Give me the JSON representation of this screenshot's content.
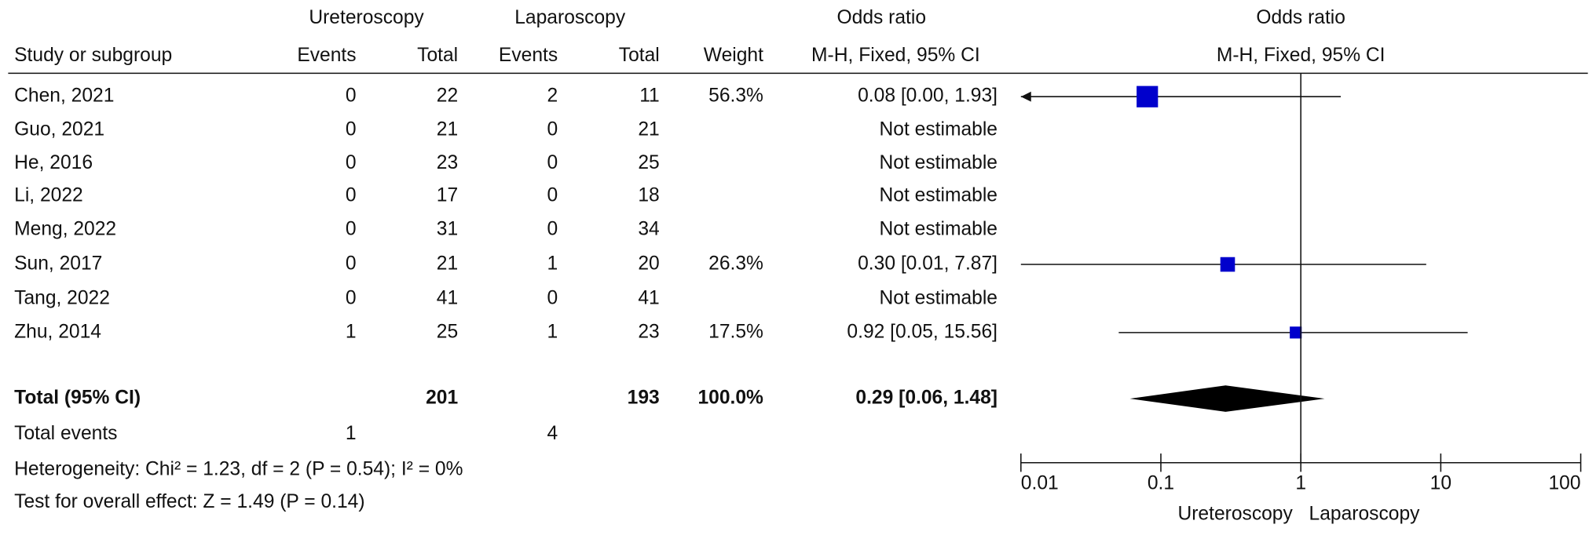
{
  "chart_data": {
    "type": "forest",
    "column_groups": [
      "Ureteroscopy",
      "Laparoscopy",
      "Odds ratio",
      "Odds ratio"
    ],
    "columns": [
      "Study or subgroup",
      "Events",
      "Total",
      "Events",
      "Total",
      "Weight",
      "M-H, Fixed, 95% CI",
      "M-H, Fixed, 95% CI"
    ],
    "studies": [
      "Chen, 2021",
      "Guo, 2021",
      "He, 2016",
      "Li, 2022",
      "Meng, 2022",
      "Sun, 2017",
      "Tang, 2022",
      "Zhu, 2014"
    ],
    "exp_events": [
      0,
      0,
      0,
      0,
      0,
      0,
      0,
      1
    ],
    "exp_total": [
      22,
      21,
      23,
      17,
      31,
      21,
      41,
      25
    ],
    "ctrl_events": [
      2,
      0,
      0,
      0,
      0,
      1,
      0,
      1
    ],
    "ctrl_total": [
      11,
      21,
      25,
      18,
      34,
      20,
      41,
      23
    ],
    "weights": {
      "values": [
        56.3,
        null,
        null,
        null,
        null,
        26.3,
        null,
        17.5
      ],
      "value_labels": [
        "56.3%",
        null,
        null,
        null,
        null,
        "26.3%",
        null,
        "17.5%"
      ]
    },
    "odds_ratio": {
      "values": [
        0.08,
        null,
        null,
        null,
        null,
        0.3,
        null,
        0.92
      ],
      "ci_low": [
        0.0,
        null,
        null,
        null,
        null,
        0.01,
        null,
        0.05
      ],
      "ci_high": [
        1.93,
        null,
        null,
        null,
        null,
        7.87,
        null,
        15.56
      ],
      "value_labels": [
        "0.08 [0.00, 1.93]",
        "Not estimable",
        "Not estimable",
        "Not estimable",
        "Not estimable",
        "0.30 [0.01, 7.87]",
        "Not estimable",
        "0.92 [0.05, 15.56]"
      ]
    },
    "total": {
      "label": "Total (95% CI)",
      "exp_total": 201,
      "ctrl_total": 193,
      "weight": 100.0,
      "weight_label": "100.0%",
      "or": 0.29,
      "ci_low": 0.06,
      "ci_high": 1.48,
      "value_label": "0.29 [0.06, 1.48]"
    },
    "total_events": {
      "label": "Total events",
      "exp": 1,
      "ctrl": 4
    },
    "heterogeneity": "Heterogeneity: Chi² = 1.23, df = 2 (P = 0.54); I² = 0%",
    "overall_effect": "Test for overall effect: Z = 1.49 (P = 0.14)",
    "xlim": [
      0.01,
      100
    ],
    "xticks": [
      0.01,
      0.1,
      1,
      10,
      100
    ],
    "log_x": true,
    "x_labels": [
      "Ureteroscopy",
      "Laparoscopy"
    ],
    "study_color": "#0000cc",
    "total_color": "#000000"
  }
}
